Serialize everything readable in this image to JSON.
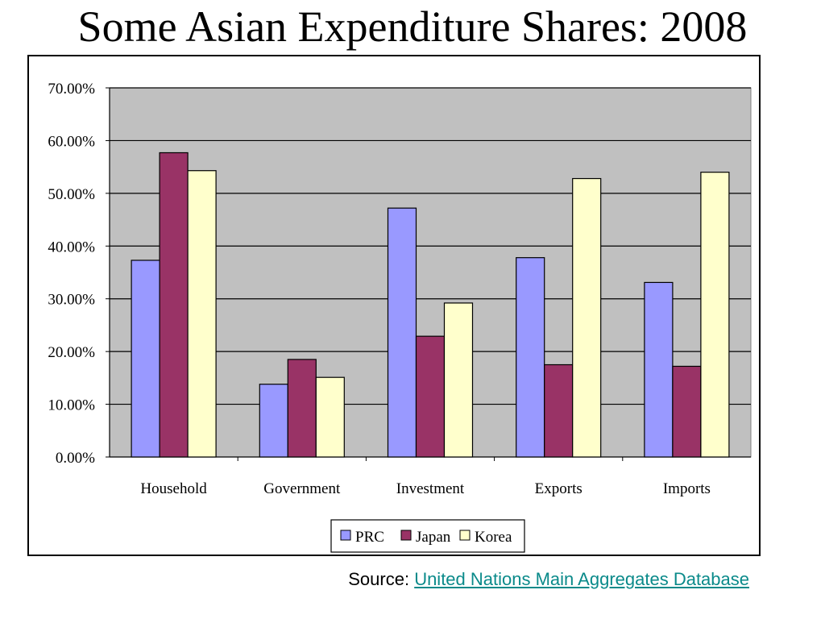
{
  "title": "Some Asian Expenditure Shares: 2008",
  "source": {
    "prefix": "Source: ",
    "link_text": "United Nations Main Aggregates Database"
  },
  "colors": {
    "plot_bg": "#c0c0c0",
    "PRC": "#9999ff",
    "Japan": "#993366",
    "Korea": "#ffffcc",
    "link": "#0a8a8a"
  },
  "chart_data": {
    "type": "bar",
    "title": "",
    "xlabel": "",
    "ylabel": "",
    "categories": [
      "Household",
      "Government",
      "Investment",
      "Exports",
      "Imports"
    ],
    "series": [
      {
        "name": "PRC",
        "color": "#9999ff",
        "values": [
          37.3,
          13.8,
          47.2,
          37.8,
          33.1
        ]
      },
      {
        "name": "Japan",
        "color": "#993366",
        "values": [
          57.7,
          18.5,
          22.9,
          17.5,
          17.2
        ]
      },
      {
        "name": "Korea",
        "color": "#ffffcc",
        "values": [
          54.3,
          15.1,
          29.2,
          52.8,
          54.0
        ]
      }
    ],
    "ylim": [
      0,
      70
    ],
    "yticks": [
      0,
      10,
      20,
      30,
      40,
      50,
      60,
      70
    ],
    "ytick_labels": [
      "0.00%",
      "10.00%",
      "20.00%",
      "30.00%",
      "40.00%",
      "50.00%",
      "60.00%",
      "70.00%"
    ],
    "grid": true,
    "legend_position": "bottom"
  }
}
